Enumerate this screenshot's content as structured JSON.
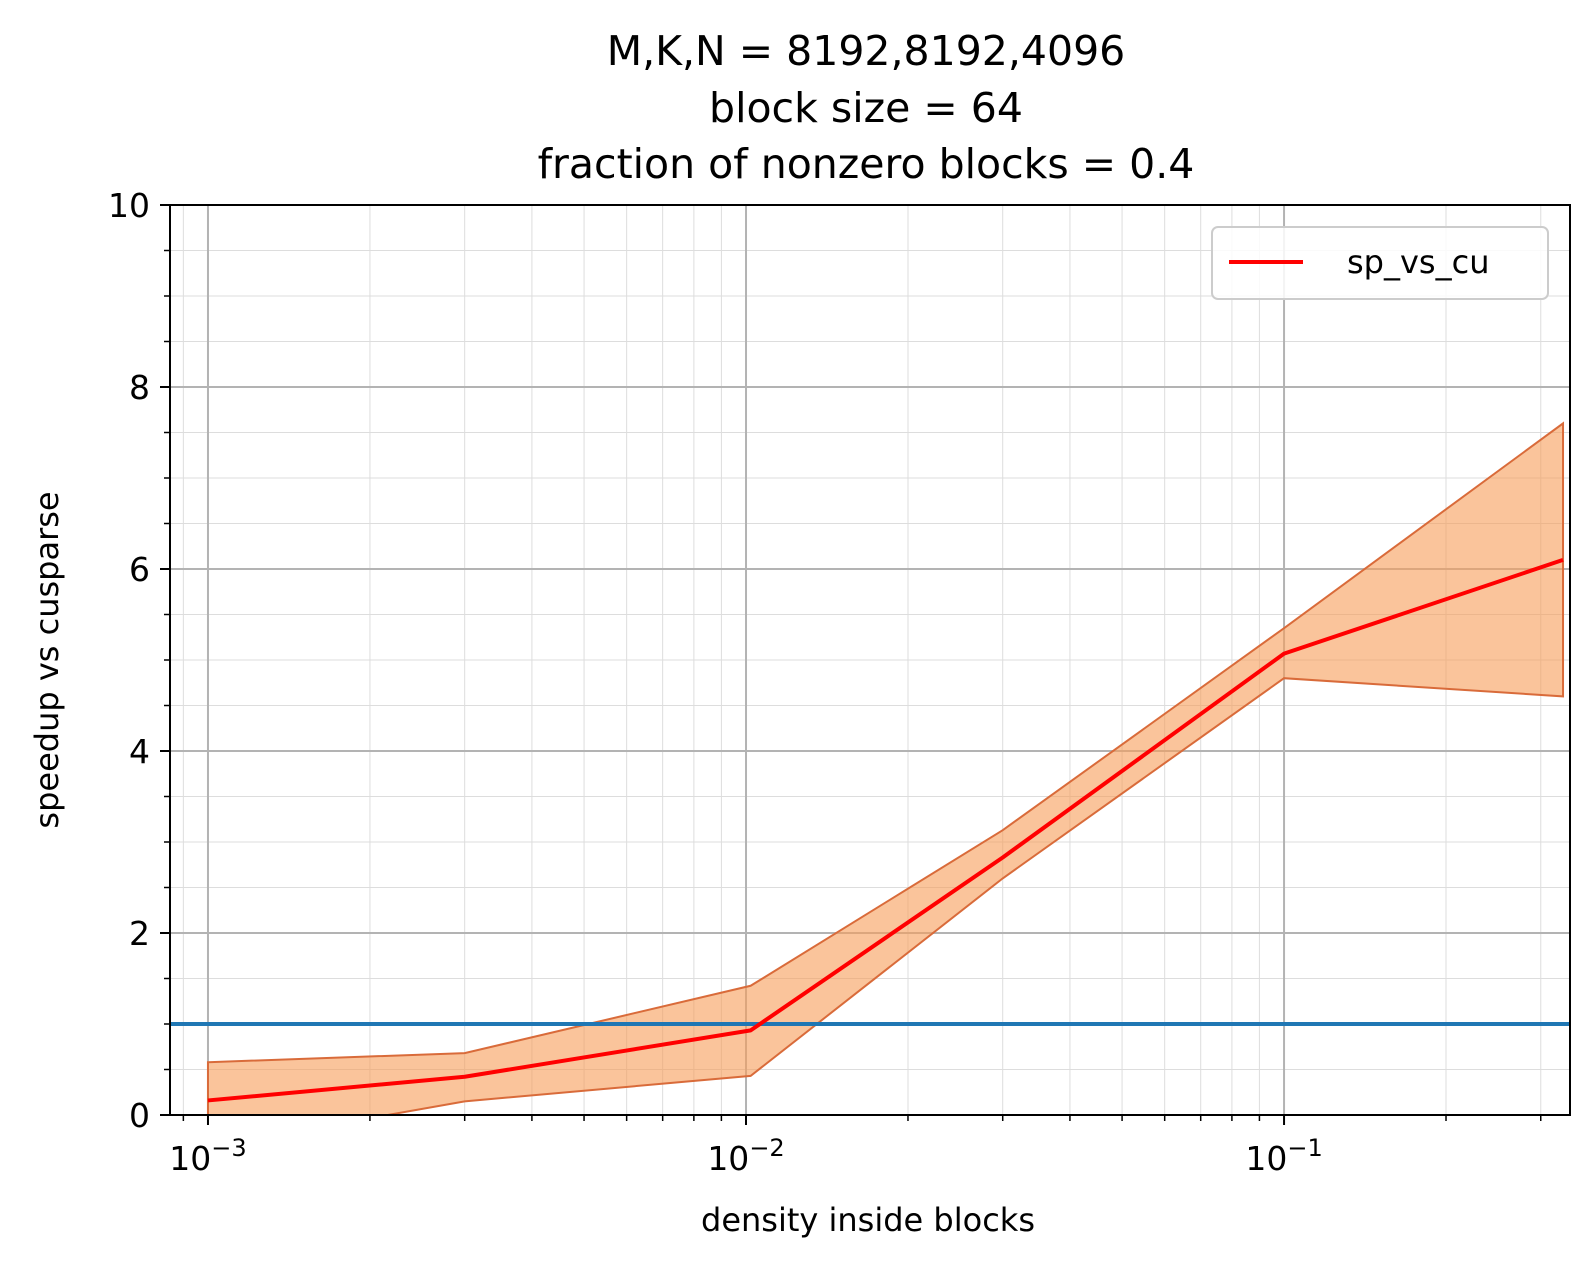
{
  "chart_data": {
    "type": "line",
    "title": [
      "M,K,N = 8192,8192,4096",
      "block size = 64",
      "fraction of nonzero blocks = 0.4"
    ],
    "xlabel": "density inside blocks",
    "ylabel": "speedup vs cusparse",
    "x_scale": "log",
    "xlim": [
      0.00085,
      0.34
    ],
    "ylim": [
      0,
      10
    ],
    "x_ticks": [
      {
        "value": 0.001,
        "base": "10",
        "exp": "−3"
      },
      {
        "value": 0.01,
        "base": "10",
        "exp": "−2"
      },
      {
        "value": 0.1,
        "base": "10",
        "exp": "−1"
      }
    ],
    "y_ticks": [
      0,
      2,
      4,
      6,
      8,
      10
    ],
    "grid": true,
    "legend_position": "upper right",
    "series": [
      {
        "name": "sp_vs_cu",
        "color": "#ff0000",
        "x": [
          0.001,
          0.003,
          0.0102,
          0.03,
          0.1,
          0.33
        ],
        "y": [
          0.16,
          0.42,
          0.93,
          2.83,
          5.07,
          6.1
        ]
      }
    ],
    "band": {
      "color": "#f79d59",
      "edge_color": "#d96b3a",
      "x": [
        0.001,
        0.003,
        0.0102,
        0.03,
        0.1,
        0.33
      ],
      "lower": [
        -0.35,
        0.15,
        0.43,
        2.6,
        4.8,
        4.6
      ],
      "upper": [
        0.58,
        0.68,
        1.42,
        3.13,
        5.35,
        7.6
      ]
    },
    "reference_line": {
      "y": 1.0,
      "color": "#1f77b4"
    }
  }
}
